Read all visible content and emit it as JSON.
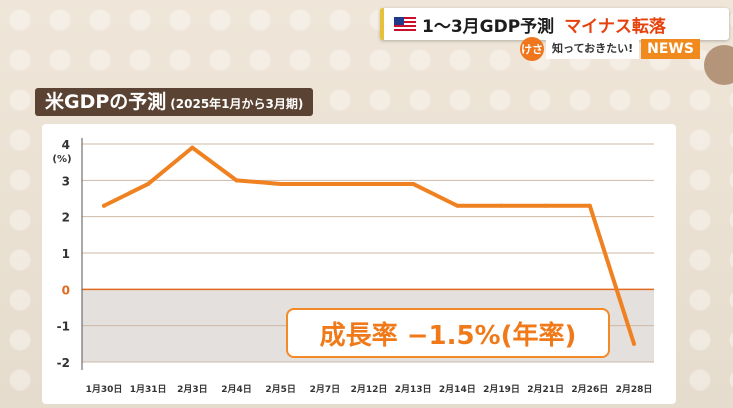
{
  "header": {
    "headline": "1〜3月GDP予測",
    "headline_accent": "マイナス転落",
    "logo_mark": "けさ",
    "logo_text": "知っておきたい!",
    "news_badge": "NEWS"
  },
  "panel": {
    "title": "米GDPの予測",
    "subtitle": "(2025年1月から3月期)",
    "callout": "成長率 −1.5%(年率)"
  },
  "chart_data": {
    "type": "line",
    "title": "米GDPの予測",
    "subtitle": "(2025年1月から3月期)",
    "ylabel": "(%)",
    "ylim": [
      -2,
      4
    ],
    "yticks": [
      4,
      3,
      2,
      1,
      0,
      -1,
      -2
    ],
    "categories": [
      "1月30日",
      "1月31日",
      "2月3日",
      "2月4日",
      "2月5日",
      "2月7日",
      "2月12日",
      "2月13日",
      "2月14日",
      "2月19日",
      "2月21日",
      "2月26日",
      "2月28日"
    ],
    "values": [
      2.3,
      2.9,
      3.9,
      3.0,
      2.9,
      2.9,
      2.9,
      2.9,
      2.3,
      2.3,
      2.3,
      2.3,
      -1.5
    ],
    "annotation": "成長率 −1.5%(年率)",
    "line_color": "#f08121",
    "grid": true,
    "negative_region_color": "#e3e0de"
  }
}
